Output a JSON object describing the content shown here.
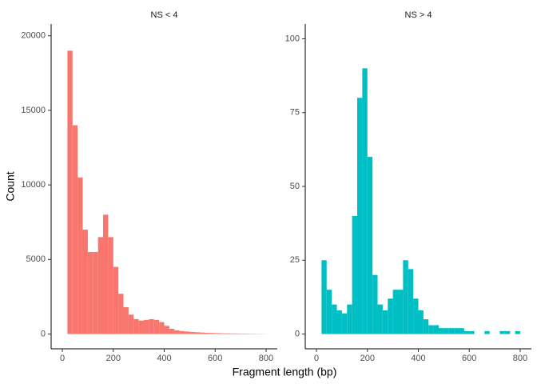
{
  "chart_data": [
    {
      "type": "histogram",
      "title": "NS < 4",
      "xlabel": "Fragment length (bp)",
      "ylabel": "Count",
      "color": "#f8766d",
      "bins": [
        20,
        40,
        60,
        80,
        100,
        120,
        140,
        160,
        180,
        200,
        220,
        240,
        260,
        280,
        300,
        320,
        340,
        360,
        380,
        400,
        420,
        440,
        460,
        480,
        500,
        520,
        540,
        560,
        580,
        600,
        620,
        640,
        660,
        680,
        700,
        720,
        740,
        760,
        780,
        800
      ],
      "values": [
        19000,
        14000,
        10500,
        7000,
        5500,
        5500,
        6500,
        8000,
        6500,
        4500,
        2700,
        1800,
        1300,
        1000,
        900,
        950,
        1000,
        950,
        800,
        550,
        350,
        250,
        200,
        170,
        140,
        120,
        100,
        80,
        70,
        60,
        50,
        45,
        40,
        35,
        30,
        25,
        20,
        15,
        10
      ],
      "xlim": [
        -44,
        844
      ],
      "ylim": [
        -990,
        20790
      ],
      "xticks": [
        0,
        200,
        400,
        600,
        800
      ],
      "yticks": [
        0,
        5000,
        10000,
        15000,
        20000
      ]
    },
    {
      "type": "histogram",
      "title": "NS > 4",
      "color": "#00bfc4",
      "bins": [
        20,
        40,
        60,
        80,
        100,
        120,
        140,
        160,
        180,
        200,
        220,
        240,
        260,
        280,
        300,
        320,
        340,
        360,
        380,
        400,
        420,
        440,
        460,
        480,
        500,
        520,
        540,
        560,
        580,
        600,
        620,
        640,
        660,
        680,
        700,
        720,
        740,
        760,
        780,
        800
      ],
      "values": [
        25,
        15,
        10,
        8,
        7,
        10,
        40,
        80,
        90,
        60,
        20,
        10,
        8,
        12,
        15,
        15,
        25,
        22,
        12,
        8,
        5,
        3,
        3,
        2,
        2,
        2,
        2,
        2,
        1,
        1,
        0,
        0,
        1,
        0,
        0,
        1,
        1,
        0,
        1
      ],
      "xlim": [
        -44,
        844
      ],
      "ylim": [
        -5,
        105
      ],
      "xticks": [
        0,
        200,
        400,
        600,
        800
      ],
      "yticks": [
        0,
        25,
        50,
        75,
        100
      ]
    }
  ]
}
